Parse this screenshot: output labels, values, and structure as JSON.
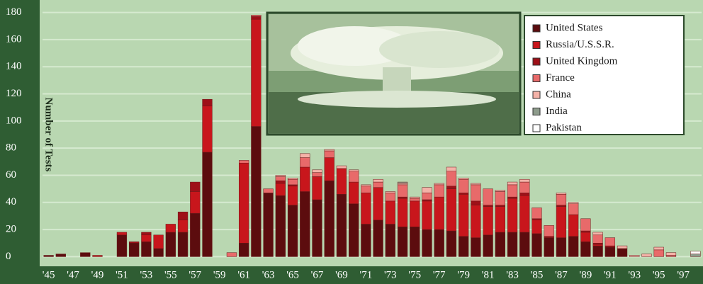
{
  "chart_data": {
    "type": "stacked-bar",
    "y_label": "Number of Tests",
    "categories": [
      "'45",
      null,
      "'47",
      null,
      "'49",
      null,
      "'51",
      null,
      "'53",
      null,
      "'55",
      null,
      "'57",
      null,
      "'59",
      null,
      "'61",
      null,
      "'63",
      null,
      "'65",
      null,
      "'67",
      null,
      "'69",
      null,
      "'71",
      null,
      "'73",
      null,
      "'75",
      null,
      "'77",
      null,
      "'79",
      null,
      "'81",
      null,
      "'83",
      null,
      "'85",
      null,
      "'87",
      null,
      "'89",
      null,
      "'91",
      null,
      "'93",
      null,
      "'95",
      null,
      "'97",
      null
    ],
    "series": [
      {
        "name": "United States",
        "color": "#5c0c0e",
        "values": [
          1,
          2,
          0,
          3,
          0,
          0,
          16,
          10,
          11,
          6,
          18,
          18,
          32,
          77,
          0,
          0,
          10,
          96,
          47,
          45,
          38,
          48,
          42,
          56,
          46,
          39,
          24,
          27,
          24,
          22,
          22,
          20,
          20,
          19,
          15,
          14,
          16,
          18,
          18,
          18,
          17,
          14,
          14,
          15,
          11,
          8,
          7,
          6,
          0,
          0,
          0,
          0,
          0,
          0
        ]
      },
      {
        "name": "Russia/U.S.S.R.",
        "color": "#c8161c",
        "values": [
          0,
          0,
          0,
          0,
          1,
          0,
          2,
          0,
          5,
          10,
          6,
          9,
          16,
          34,
          0,
          0,
          59,
          79,
          0,
          9,
          14,
          18,
          17,
          17,
          19,
          16,
          23,
          24,
          17,
          21,
          19,
          21,
          24,
          31,
          31,
          24,
          21,
          19,
          25,
          27,
          10,
          0,
          23,
          16,
          7,
          1,
          0,
          0,
          0,
          0,
          0,
          0,
          0,
          0
        ]
      },
      {
        "name": "United Kingdom",
        "color": "#9e1018",
        "values": [
          0,
          0,
          0,
          0,
          0,
          0,
          0,
          1,
          2,
          0,
          0,
          6,
          7,
          5,
          0,
          0,
          0,
          2,
          0,
          2,
          1,
          0,
          0,
          0,
          0,
          0,
          0,
          0,
          0,
          1,
          0,
          1,
          0,
          2,
          1,
          3,
          1,
          1,
          1,
          2,
          1,
          1,
          1,
          0,
          1,
          1,
          1,
          0,
          0,
          0,
          0,
          0,
          0,
          0
        ]
      },
      {
        "name": "France",
        "color": "#e86a6a",
        "values": [
          0,
          0,
          0,
          0,
          0,
          0,
          0,
          0,
          0,
          0,
          0,
          0,
          0,
          0,
          0,
          3,
          2,
          1,
          3,
          3,
          4,
          7,
          3,
          5,
          0,
          8,
          5,
          4,
          6,
          9,
          2,
          5,
          9,
          11,
          10,
          12,
          12,
          10,
          9,
          8,
          8,
          8,
          8,
          8,
          9,
          6,
          6,
          0,
          0,
          0,
          5,
          1,
          0,
          0
        ]
      },
      {
        "name": "China",
        "color": "#f4b2a8",
        "values": [
          0,
          0,
          0,
          0,
          0,
          0,
          0,
          0,
          0,
          0,
          0,
          0,
          0,
          0,
          0,
          0,
          0,
          0,
          0,
          1,
          1,
          3,
          2,
          1,
          2,
          1,
          1,
          2,
          1,
          1,
          1,
          4,
          1,
          3,
          1,
          1,
          0,
          1,
          2,
          2,
          0,
          0,
          1,
          1,
          0,
          2,
          0,
          2,
          1,
          2,
          2,
          2,
          0,
          0
        ]
      },
      {
        "name": "India",
        "color": "#8e9c8c",
        "values": [
          0,
          0,
          0,
          0,
          0,
          0,
          0,
          0,
          0,
          0,
          0,
          0,
          0,
          0,
          0,
          0,
          0,
          0,
          0,
          0,
          0,
          0,
          0,
          0,
          0,
          0,
          0,
          0,
          0,
          1,
          0,
          0,
          0,
          0,
          0,
          0,
          0,
          0,
          0,
          0,
          0,
          0,
          0,
          0,
          0,
          0,
          0,
          0,
          0,
          0,
          0,
          0,
          0,
          2
        ]
      },
      {
        "name": "Pakistan",
        "color": "#ffffff",
        "values": [
          0,
          0,
          0,
          0,
          0,
          0,
          0,
          0,
          0,
          0,
          0,
          0,
          0,
          0,
          0,
          0,
          0,
          0,
          0,
          0,
          0,
          0,
          0,
          0,
          0,
          0,
          0,
          0,
          0,
          0,
          0,
          0,
          0,
          0,
          0,
          0,
          0,
          0,
          0,
          0,
          0,
          0,
          0,
          0,
          0,
          0,
          0,
          0,
          0,
          0,
          0,
          0,
          0,
          2
        ]
      }
    ],
    "ylim": [
      -5,
      185
    ],
    "yticks": [
      0,
      20,
      40,
      60,
      80,
      100,
      120,
      140,
      160,
      180
    ],
    "grid": true
  }
}
